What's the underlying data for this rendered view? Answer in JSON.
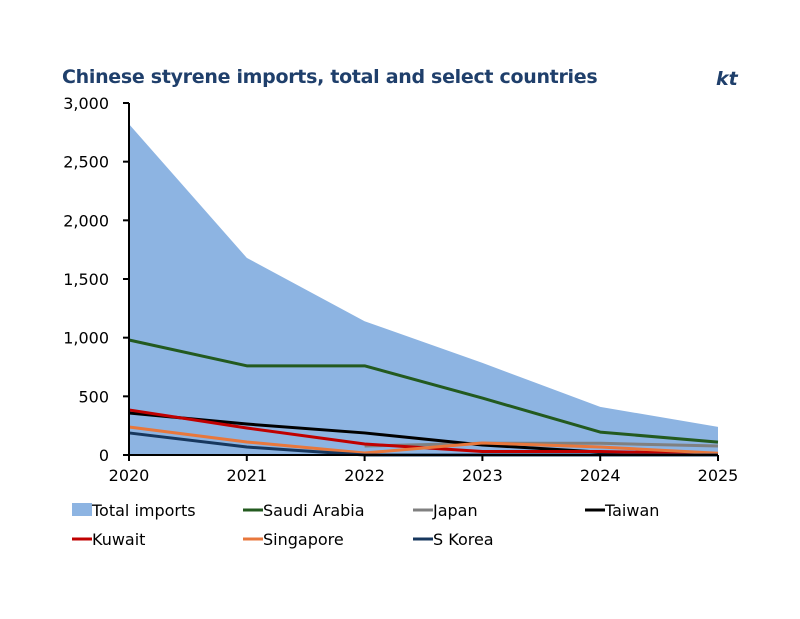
{
  "chart_data": {
    "type": "area+line",
    "title": "Chinese styrene imports, total and select countries",
    "unit": "kt",
    "x": [
      "2020",
      "2021",
      "2022",
      "2023",
      "2024",
      "2025"
    ],
    "ylim": [
      0,
      3000
    ],
    "yticks": [
      "0",
      "500",
      "1,000",
      "1,500",
      "2,000",
      "2,500",
      "3,000"
    ],
    "ytick_values": [
      0,
      500,
      1000,
      1500,
      2000,
      2500,
      3000
    ],
    "grid": false,
    "legend_position": "bottom",
    "series": [
      {
        "name": "Total imports",
        "kind": "area",
        "color": "#8db4e2",
        "values": [
          2820,
          1680,
          1140,
          785,
          410,
          240
        ]
      },
      {
        "name": "Saudi Arabia",
        "kind": "line",
        "color": "#235a1f",
        "values": [
          980,
          760,
          760,
          485,
          195,
          110
        ]
      },
      {
        "name": "Japan",
        "kind": "line",
        "color": "#808080",
        "values": [
          null,
          null,
          77,
          100,
          100,
          77
        ]
      },
      {
        "name": "Taiwan",
        "kind": "line",
        "color": "#000000",
        "values": [
          358,
          264,
          188,
          85,
          25,
          5
        ]
      },
      {
        "name": "Kuwait",
        "kind": "line",
        "color": "#c00000",
        "values": [
          384,
          230,
          94,
          30,
          30,
          10
        ]
      },
      {
        "name": "Singapore",
        "kind": "line",
        "color": "#e8773c",
        "values": [
          239,
          111,
          17,
          102,
          68,
          15
        ]
      },
      {
        "name": "S Korea",
        "kind": "line",
        "color": "#17375e",
        "values": [
          188,
          68,
          0,
          0,
          0,
          0
        ]
      }
    ]
  }
}
